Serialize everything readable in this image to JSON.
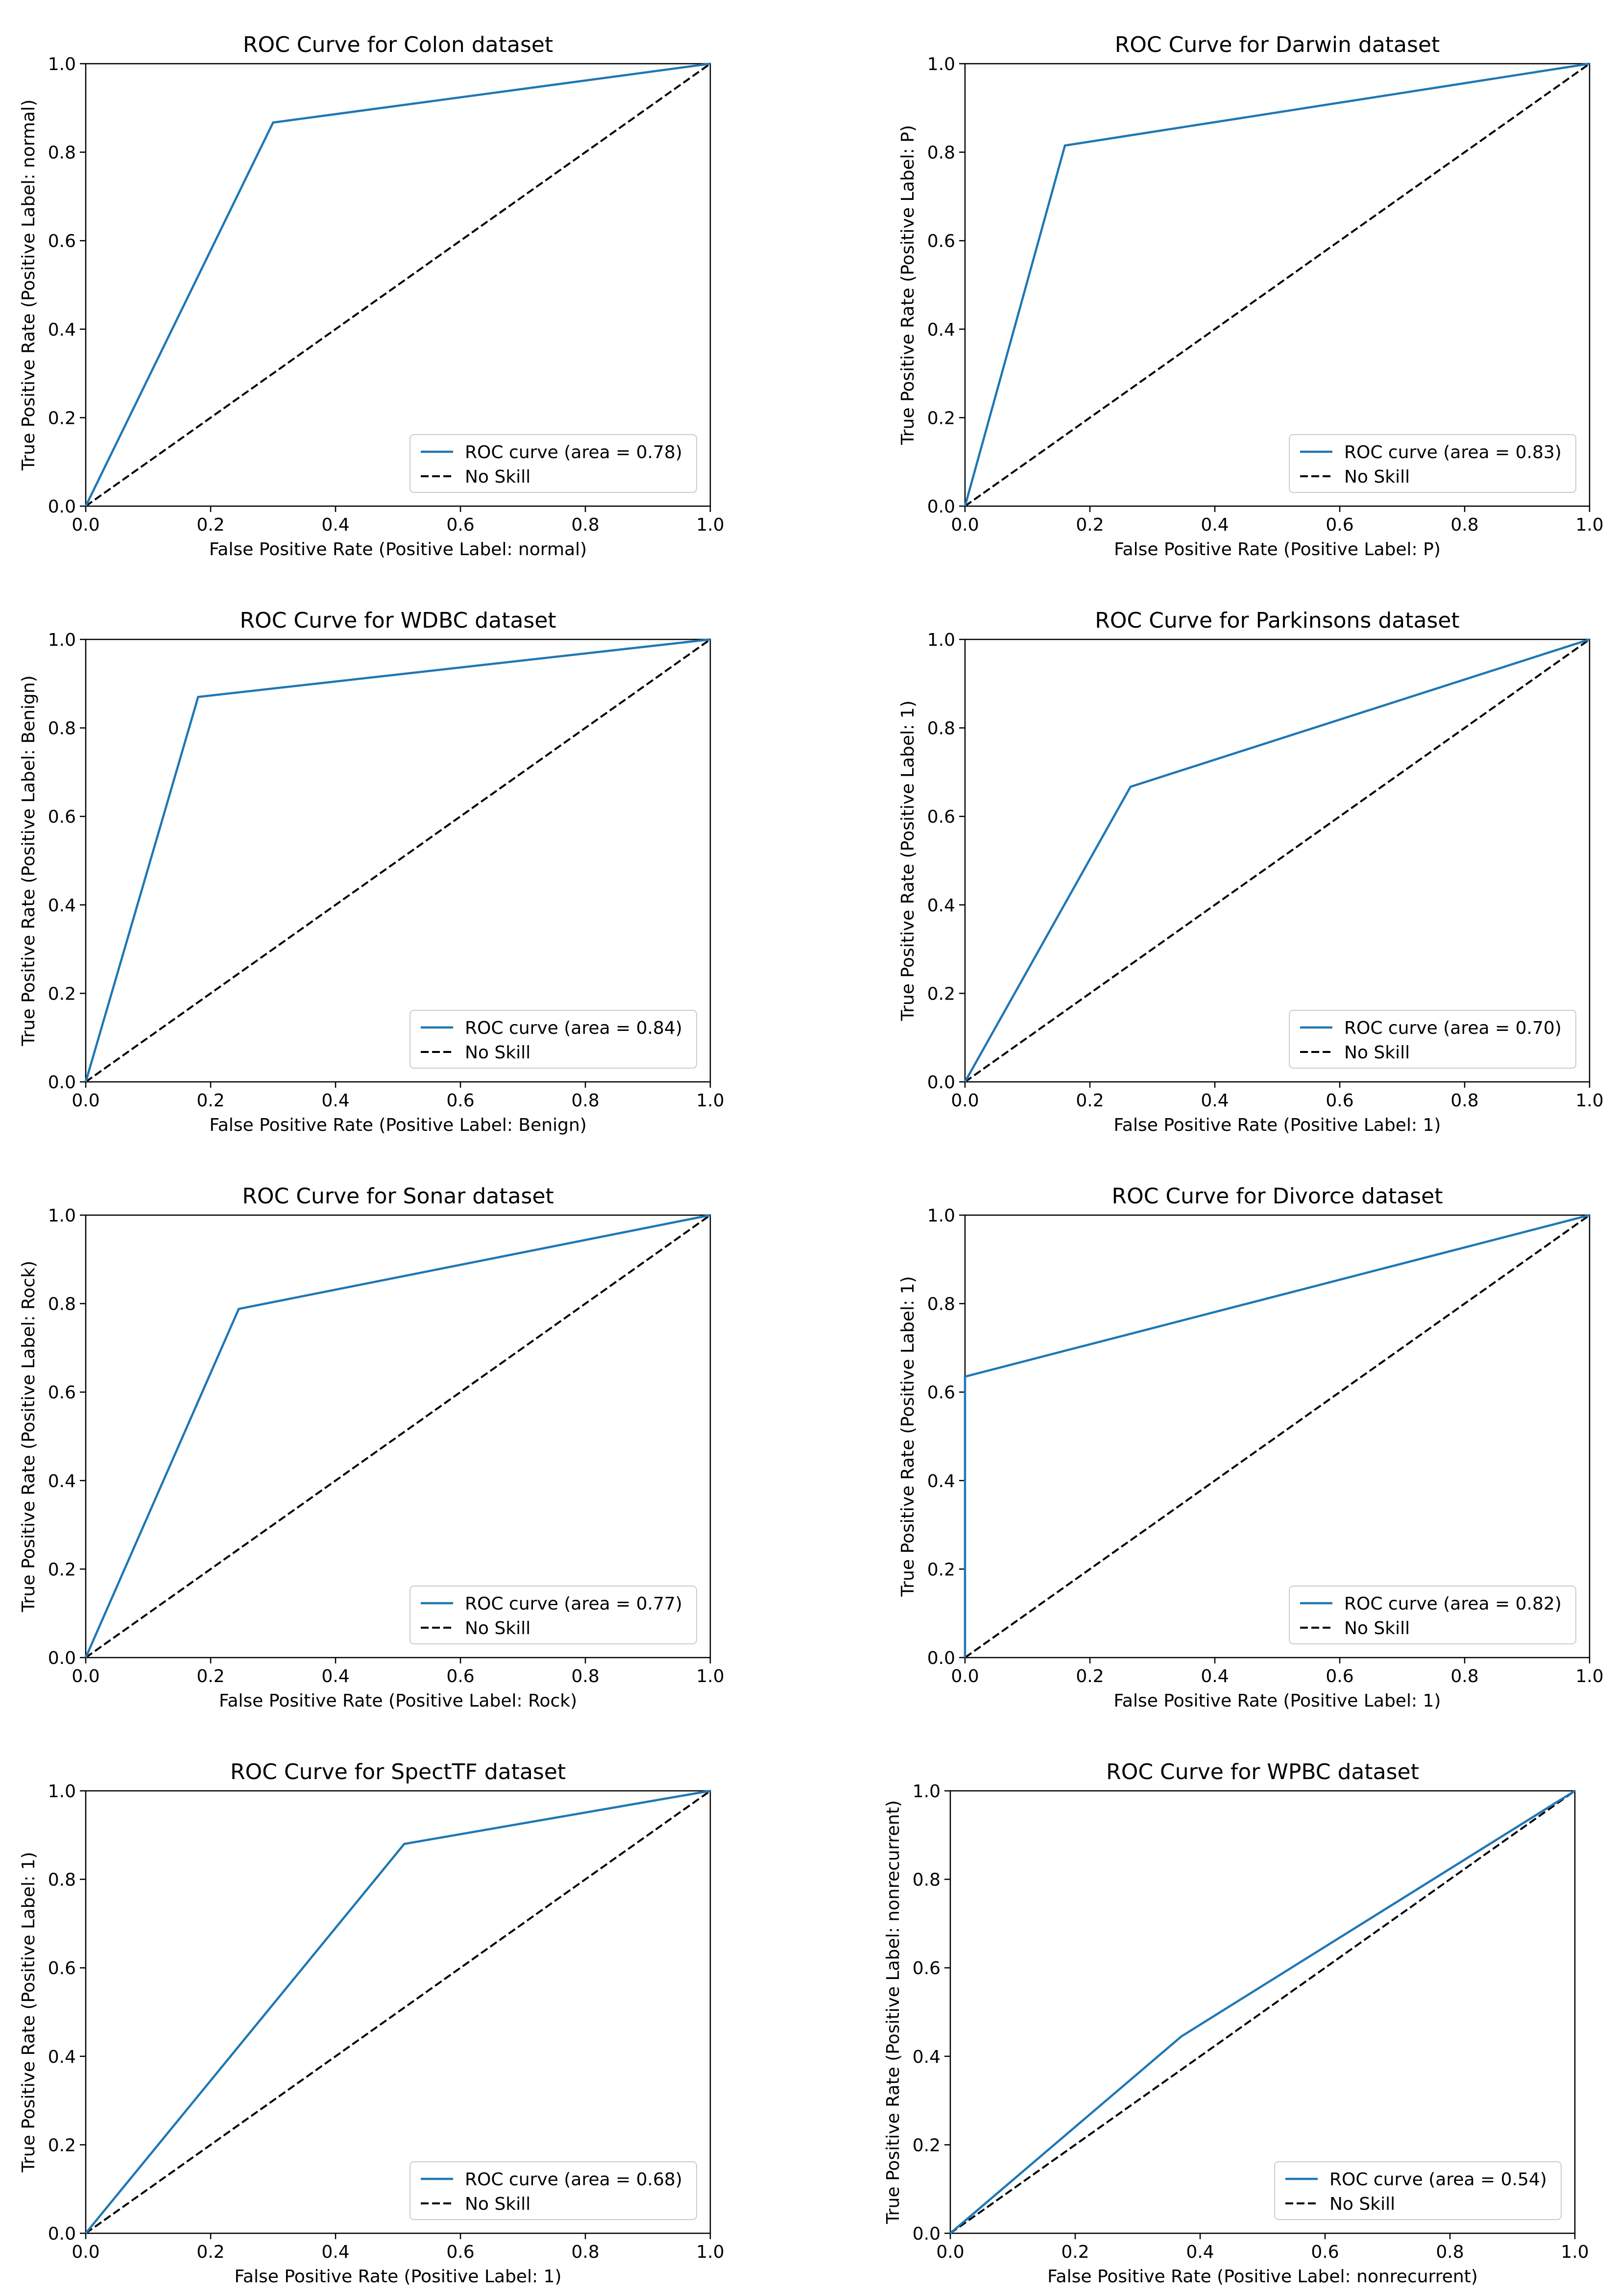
{
  "colors": {
    "roc": "#1f77b4",
    "no_skill": "#000000",
    "axes": "#000000",
    "legend_border": "#cccccc"
  },
  "legend": {
    "no_skill_label": "No Skill",
    "roc_label_prefix": "ROC curve (area = "
  },
  "chart_data": [
    {
      "type": "line",
      "title": "ROC Curve for Colon dataset",
      "xlabel": "False Positive Rate (Positive Label: normal)",
      "ylabel": "True Positive Rate (Positive Label: normal)",
      "xlim": [
        0,
        1
      ],
      "ylim": [
        0,
        1
      ],
      "xticks": [
        "0.0",
        "0.2",
        "0.4",
        "0.6",
        "0.8",
        "1.0"
      ],
      "yticks": [
        "0.0",
        "0.2",
        "0.4",
        "0.6",
        "0.8",
        "1.0"
      ],
      "legend_position": "lower right",
      "series": [
        {
          "name": "ROC curve (area = 0.78)",
          "x": [
            0,
            0.3,
            1
          ],
          "y": [
            0,
            0.867,
            1
          ]
        },
        {
          "name": "No Skill",
          "x": [
            0,
            1
          ],
          "y": [
            0,
            1
          ]
        }
      ]
    },
    {
      "type": "line",
      "title": "ROC Curve for Darwin dataset",
      "xlabel": "False Positive Rate (Positive Label: P)",
      "ylabel": "True Positive Rate (Positive Label: P)",
      "xlim": [
        0,
        1
      ],
      "ylim": [
        0,
        1
      ],
      "xticks": [
        "0.0",
        "0.2",
        "0.4",
        "0.6",
        "0.8",
        "1.0"
      ],
      "yticks": [
        "0.0",
        "0.2",
        "0.4",
        "0.6",
        "0.8",
        "1.0"
      ],
      "legend_position": "lower right",
      "series": [
        {
          "name": "ROC curve (area = 0.83)",
          "x": [
            0,
            0.16,
            1
          ],
          "y": [
            0,
            0.815,
            1
          ]
        },
        {
          "name": "No Skill",
          "x": [
            0,
            1
          ],
          "y": [
            0,
            1
          ]
        }
      ]
    },
    {
      "type": "line",
      "title": "ROC Curve for WDBC dataset",
      "xlabel": "False Positive Rate (Positive Label: Benign)",
      "ylabel": "True Positive Rate (Positive Label: Benign)",
      "xlim": [
        0,
        1
      ],
      "ylim": [
        0,
        1
      ],
      "xticks": [
        "0.0",
        "0.2",
        "0.4",
        "0.6",
        "0.8",
        "1.0"
      ],
      "yticks": [
        "0.0",
        "0.2",
        "0.4",
        "0.6",
        "0.8",
        "1.0"
      ],
      "legend_position": "lower right",
      "series": [
        {
          "name": "ROC curve (area = 0.84)",
          "x": [
            0,
            0.18,
            1
          ],
          "y": [
            0,
            0.87,
            1
          ]
        },
        {
          "name": "No Skill",
          "x": [
            0,
            1
          ],
          "y": [
            0,
            1
          ]
        }
      ]
    },
    {
      "type": "line",
      "title": "ROC Curve for Parkinsons dataset",
      "xlabel": "False Positive Rate (Positive Label: 1)",
      "ylabel": "True Positive Rate (Positive Label: 1)",
      "xlim": [
        0,
        1
      ],
      "ylim": [
        0,
        1
      ],
      "xticks": [
        "0.0",
        "0.2",
        "0.4",
        "0.6",
        "0.8",
        "1.0"
      ],
      "yticks": [
        "0.0",
        "0.2",
        "0.4",
        "0.6",
        "0.8",
        "1.0"
      ],
      "legend_position": "lower right",
      "series": [
        {
          "name": "ROC curve (area = 0.70)",
          "x": [
            0,
            0.265,
            1
          ],
          "y": [
            0,
            0.667,
            1
          ]
        },
        {
          "name": "No Skill",
          "x": [
            0,
            1
          ],
          "y": [
            0,
            1
          ]
        }
      ]
    },
    {
      "type": "line",
      "title": "ROC Curve for Sonar dataset",
      "xlabel": "False Positive Rate (Positive Label: Rock)",
      "ylabel": "True Positive Rate (Positive Label: Rock)",
      "xlim": [
        0,
        1
      ],
      "ylim": [
        0,
        1
      ],
      "xticks": [
        "0.0",
        "0.2",
        "0.4",
        "0.6",
        "0.8",
        "1.0"
      ],
      "yticks": [
        "0.0",
        "0.2",
        "0.4",
        "0.6",
        "0.8",
        "1.0"
      ],
      "legend_position": "lower right",
      "series": [
        {
          "name": "ROC curve (area = 0.77)",
          "x": [
            0,
            0.245,
            1
          ],
          "y": [
            0,
            0.788,
            1
          ]
        },
        {
          "name": "No Skill",
          "x": [
            0,
            1
          ],
          "y": [
            0,
            1
          ]
        }
      ]
    },
    {
      "type": "line",
      "title": "ROC Curve for Divorce dataset",
      "xlabel": "False Positive Rate (Positive Label: 1)",
      "ylabel": "True Positive Rate (Positive Label: 1)",
      "xlim": [
        0,
        1
      ],
      "ylim": [
        0,
        1
      ],
      "xticks": [
        "0.0",
        "0.2",
        "0.4",
        "0.6",
        "0.8",
        "1.0"
      ],
      "yticks": [
        "0.0",
        "0.2",
        "0.4",
        "0.6",
        "0.8",
        "1.0"
      ],
      "legend_position": "lower right",
      "series": [
        {
          "name": "ROC curve (area = 0.82)",
          "x": [
            0,
            0,
            1
          ],
          "y": [
            0,
            0.635,
            1
          ]
        },
        {
          "name": "No Skill",
          "x": [
            0,
            1
          ],
          "y": [
            0,
            1
          ]
        }
      ]
    },
    {
      "type": "line",
      "title": "ROC Curve for SpectTF dataset",
      "xlabel": "False Positive Rate (Positive Label: 1)",
      "ylabel": "True Positive Rate (Positive Label: 1)",
      "xlim": [
        0,
        1
      ],
      "ylim": [
        0,
        1
      ],
      "xticks": [
        "0.0",
        "0.2",
        "0.4",
        "0.6",
        "0.8",
        "1.0"
      ],
      "yticks": [
        "0.0",
        "0.2",
        "0.4",
        "0.6",
        "0.8",
        "1.0"
      ],
      "legend_position": "lower right",
      "series": [
        {
          "name": "ROC curve (area = 0.68)",
          "x": [
            0,
            0.51,
            1
          ],
          "y": [
            0,
            0.88,
            1
          ]
        },
        {
          "name": "No Skill",
          "x": [
            0,
            1
          ],
          "y": [
            0,
            1
          ]
        }
      ]
    },
    {
      "type": "line",
      "title": "ROC Curve for WPBC dataset",
      "xlabel": "False Positive Rate (Positive Label: nonrecurrent)",
      "ylabel": "True Positive Rate (Positive Label: nonrecurrent)",
      "xlim": [
        0,
        1
      ],
      "ylim": [
        0,
        1
      ],
      "xticks": [
        "0.0",
        "0.2",
        "0.4",
        "0.6",
        "0.8",
        "1.0"
      ],
      "yticks": [
        "0.0",
        "0.2",
        "0.4",
        "0.6",
        "0.8",
        "1.0"
      ],
      "legend_position": "lower right",
      "series": [
        {
          "name": "ROC curve (area = 0.54)",
          "x": [
            0,
            0.37,
            1
          ],
          "y": [
            0,
            0.445,
            1
          ]
        },
        {
          "name": "No Skill",
          "x": [
            0,
            1
          ],
          "y": [
            0,
            1
          ]
        }
      ]
    }
  ]
}
